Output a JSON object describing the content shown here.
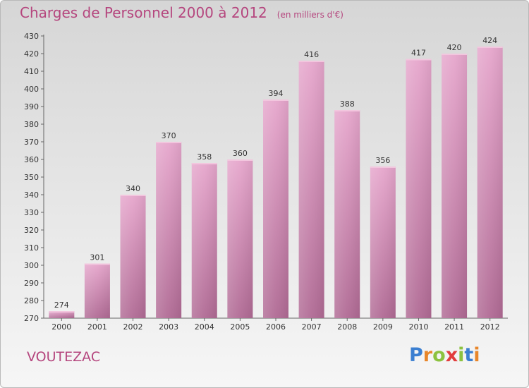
{
  "title": "Charges de Personnel 2000 à 2012",
  "subtitle": "(en milliers d'€)",
  "commune": "VOUTEZAC",
  "logo": {
    "letters": [
      "P",
      "r",
      "o",
      "x",
      "i",
      "t",
      "i"
    ],
    "colors": [
      "#3b7fd1",
      "#e8862a",
      "#8cc23f",
      "#e23c3c",
      "#8cc23f",
      "#3b7fd1",
      "#e8862a"
    ]
  },
  "chart_data": {
    "type": "bar",
    "categories": [
      "2000",
      "2001",
      "2002",
      "2003",
      "2004",
      "2005",
      "2006",
      "2007",
      "2008",
      "2009",
      "2010",
      "2011",
      "2012"
    ],
    "values": [
      274,
      301,
      340,
      370,
      358,
      360,
      394,
      416,
      388,
      356,
      417,
      420,
      424
    ],
    "title": "Charges de Personnel 2000 à 2012",
    "subtitle": "(en milliers d'€)",
    "ylim": [
      270,
      430
    ],
    "ytick_step": 10,
    "grid": false,
    "bar_color": "#d98bbb"
  }
}
